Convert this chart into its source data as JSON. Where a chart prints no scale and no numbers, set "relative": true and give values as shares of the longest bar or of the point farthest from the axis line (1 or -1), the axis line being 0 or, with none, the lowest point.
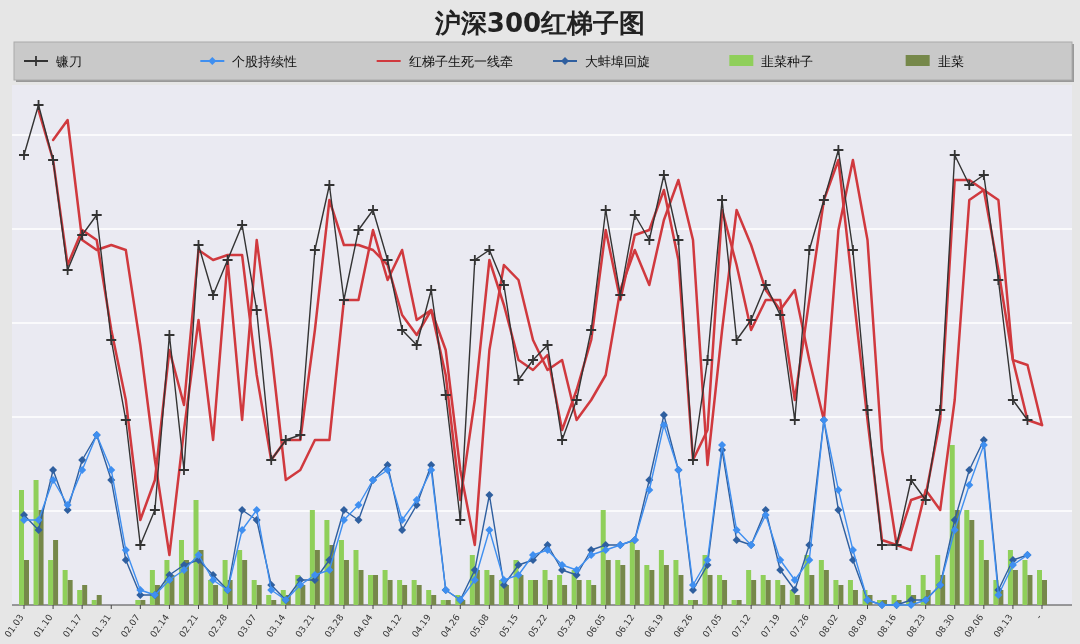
{
  "chart_data": {
    "type": "line",
    "title": "沪深300红梯子图",
    "relative": true,
    "grid": "y",
    "legend": "top",
    "categories": [
      "01.03",
      null,
      "01.10",
      null,
      "01.17",
      null,
      "01.31",
      null,
      "02.07",
      null,
      "02.14",
      null,
      "02.21",
      null,
      "02.28",
      null,
      "03.07",
      null,
      "03.14",
      null,
      "03.21",
      null,
      "03.28",
      null,
      "04.04",
      null,
      "04.12",
      null,
      "04.19",
      null,
      "04.26",
      null,
      "05.08",
      null,
      "05.15",
      null,
      "05.22",
      null,
      "05.29",
      null,
      "06.05",
      null,
      "06.12",
      null,
      "06.19",
      null,
      "06.26",
      null,
      "07.05",
      null,
      "07.12",
      null,
      "07.19",
      null,
      "07.26",
      null,
      "08.02",
      null,
      "08.09",
      null,
      "08.16",
      null,
      "08.23",
      null,
      "08.30",
      null,
      "09.06",
      null,
      "09.13",
      null,
      "-"
    ],
    "series": [
      {
        "name": "镰刀",
        "type": "line",
        "marker": "cross",
        "color": "#333333",
        "values": [
          0.9,
          1.0,
          0.89,
          0.67,
          0.74,
          0.78,
          0.53,
          0.37,
          0.12,
          0.19,
          0.54,
          0.27,
          0.72,
          0.62,
          0.69,
          0.76,
          0.59,
          0.29,
          0.33,
          0.34,
          0.71,
          0.84,
          0.61,
          0.75,
          0.79,
          0.69,
          0.55,
          0.52,
          0.63,
          0.42,
          0.17,
          0.69,
          0.71,
          0.64,
          0.45,
          0.49,
          0.52,
          0.33,
          0.41,
          0.55,
          0.79,
          0.62,
          0.78,
          0.73,
          0.86,
          0.73,
          0.29,
          0.49,
          0.81,
          0.53,
          0.57,
          0.64,
          0.58,
          0.37,
          0.71,
          0.81,
          0.91,
          0.71,
          0.39,
          0.12,
          0.12,
          0.25,
          0.21,
          0.39,
          0.9,
          0.84,
          0.86,
          0.65,
          0.41,
          0.37,
          null
        ]
      },
      {
        "name": "个股持续性",
        "type": "line",
        "marker": "diamond",
        "color": "#3f8ff0",
        "values": [
          0.17,
          0.17,
          0.25,
          0.2,
          0.27,
          0.34,
          0.27,
          0.11,
          0.03,
          0.02,
          0.05,
          0.07,
          0.1,
          0.05,
          0.03,
          0.15,
          0.19,
          0.03,
          0.01,
          0.04,
          0.06,
          0.07,
          0.17,
          0.2,
          0.25,
          0.27,
          0.17,
          0.21,
          0.27,
          0.03,
          0.01,
          0.05,
          0.15,
          0.05,
          0.06,
          0.1,
          0.11,
          0.08,
          0.07,
          0.1,
          0.11,
          0.12,
          0.13,
          0.23,
          0.36,
          0.27,
          0.04,
          0.09,
          0.32,
          0.15,
          0.12,
          0.18,
          0.09,
          0.05,
          0.09,
          0.37,
          0.23,
          0.11,
          0.01,
          0.0,
          0.0,
          0.0,
          0.01,
          0.04,
          0.15,
          0.24,
          0.32,
          0.02,
          0.08,
          0.1,
          null
        ]
      },
      {
        "name": "红梯子生死一线牵",
        "type": "line",
        "marker": "none",
        "color": "#d0393e",
        "values": [
          null,
          0.99,
          0.89,
          0.68,
          0.75,
          0.73,
          0.55,
          0.41,
          0.17,
          0.25,
          0.51,
          0.4,
          0.71,
          0.69,
          0.7,
          0.7,
          0.46,
          0.29,
          0.33,
          0.33,
          0.55,
          0.81,
          0.72,
          0.72,
          0.71,
          0.68,
          0.58,
          0.54,
          0.59,
          0.46,
          0.21,
          0.41,
          0.69,
          0.6,
          0.49,
          0.47,
          0.5,
          0.35,
          0.43,
          0.53,
          0.75,
          0.61,
          0.74,
          0.75,
          0.83,
          0.69,
          0.29,
          0.35,
          0.79,
          0.68,
          0.55,
          0.61,
          0.61,
          0.41,
          0.61,
          0.81,
          0.89,
          0.63,
          0.37,
          0.13,
          0.12,
          0.21,
          0.22,
          0.37,
          0.85,
          0.85,
          0.83,
          0.67,
          0.49,
          0.37,
          0.36
        ]
      },
      {
        "type": "line",
        "marker": "none",
        "color": "#d0393e",
        "values": [
          null,
          null,
          0.93,
          0.97,
          0.73,
          0.71,
          0.72,
          0.71,
          0.52,
          0.29,
          0.1,
          0.35,
          0.57,
          0.33,
          0.69,
          0.37,
          0.73,
          0.51,
          0.25,
          0.27,
          0.33,
          0.33,
          0.61,
          0.61,
          0.75,
          0.65,
          0.71,
          0.57,
          0.59,
          0.51,
          0.27,
          0.12,
          0.51,
          0.68,
          0.65,
          0.53,
          0.47,
          0.49,
          0.37,
          0.41,
          0.46,
          0.63,
          0.71,
          0.64,
          0.77,
          0.85,
          0.73,
          0.28,
          0.55,
          0.79,
          0.72,
          0.63,
          0.59,
          0.63,
          0.49,
          0.37,
          0.75,
          0.89,
          0.73,
          0.31,
          0.12,
          0.11,
          0.23,
          0.19,
          0.41,
          0.81,
          0.83,
          0.81,
          0.49,
          0.48,
          0.36
        ]
      },
      {
        "name": "大蚌埠回旋",
        "type": "line",
        "marker": "diamond",
        "color": "#2f5f9f",
        "values": [
          0.18,
          0.15,
          0.27,
          0.19,
          0.29,
          0.34,
          0.25,
          0.09,
          0.02,
          0.02,
          0.06,
          0.08,
          0.09,
          0.06,
          0.03,
          0.19,
          0.17,
          0.04,
          0.01,
          0.05,
          0.05,
          0.09,
          0.19,
          0.17,
          0.25,
          0.28,
          0.15,
          0.2,
          0.28,
          0.03,
          0.01,
          0.07,
          0.22,
          0.04,
          0.08,
          0.09,
          0.12,
          0.07,
          0.06,
          0.11,
          0.12,
          0.12,
          0.13,
          0.25,
          0.38,
          0.27,
          0.03,
          0.08,
          0.31,
          0.13,
          0.12,
          0.19,
          0.07,
          0.03,
          0.12,
          0.37,
          0.19,
          0.09,
          0.01,
          0.0,
          0.0,
          0.01,
          0.01,
          0.04,
          0.17,
          0.27,
          0.33,
          0.03,
          0.09,
          0.1,
          null
        ]
      },
      {
        "name": "韭菜种子",
        "type": "bar",
        "color": "#8fcf5a",
        "values": [
          0.23,
          0.25,
          0.09,
          0.07,
          0.03,
          0.01,
          0.0,
          0.0,
          0.01,
          0.07,
          0.09,
          0.13,
          0.21,
          0.05,
          0.09,
          0.11,
          0.05,
          0.02,
          0.03,
          0.06,
          0.19,
          0.17,
          0.13,
          0.11,
          0.06,
          0.07,
          0.05,
          0.05,
          0.03,
          0.01,
          0.02,
          0.1,
          0.07,
          0.05,
          0.09,
          0.05,
          0.07,
          0.06,
          0.07,
          0.05,
          0.19,
          0.09,
          0.13,
          0.08,
          0.11,
          0.09,
          0.01,
          0.1,
          0.06,
          0.01,
          0.07,
          0.06,
          0.05,
          0.03,
          0.1,
          0.09,
          0.05,
          0.05,
          0.03,
          0.01,
          0.02,
          0.04,
          0.06,
          0.1,
          0.32,
          0.19,
          0.13,
          0.05,
          0.11,
          0.09,
          0.07
        ]
      },
      {
        "name": "韭菜",
        "type": "bar",
        "color": "#76884a",
        "values": [
          0.09,
          0.19,
          0.13,
          0.05,
          0.04,
          0.02,
          0.0,
          0.0,
          0.01,
          0.04,
          0.06,
          0.09,
          0.11,
          0.04,
          0.05,
          0.09,
          0.04,
          0.01,
          0.02,
          0.04,
          0.11,
          0.12,
          0.09,
          0.07,
          0.06,
          0.05,
          0.04,
          0.04,
          0.02,
          0.01,
          0.01,
          0.07,
          0.06,
          0.04,
          0.06,
          0.05,
          0.05,
          0.04,
          0.05,
          0.04,
          0.09,
          0.08,
          0.11,
          0.07,
          0.08,
          0.06,
          0.01,
          0.06,
          0.05,
          0.01,
          0.05,
          0.05,
          0.04,
          0.02,
          0.06,
          0.07,
          0.04,
          0.03,
          0.02,
          0.01,
          0.01,
          0.02,
          0.03,
          0.06,
          0.19,
          0.17,
          0.09,
          0.03,
          0.07,
          0.06,
          0.05
        ]
      }
    ]
  }
}
